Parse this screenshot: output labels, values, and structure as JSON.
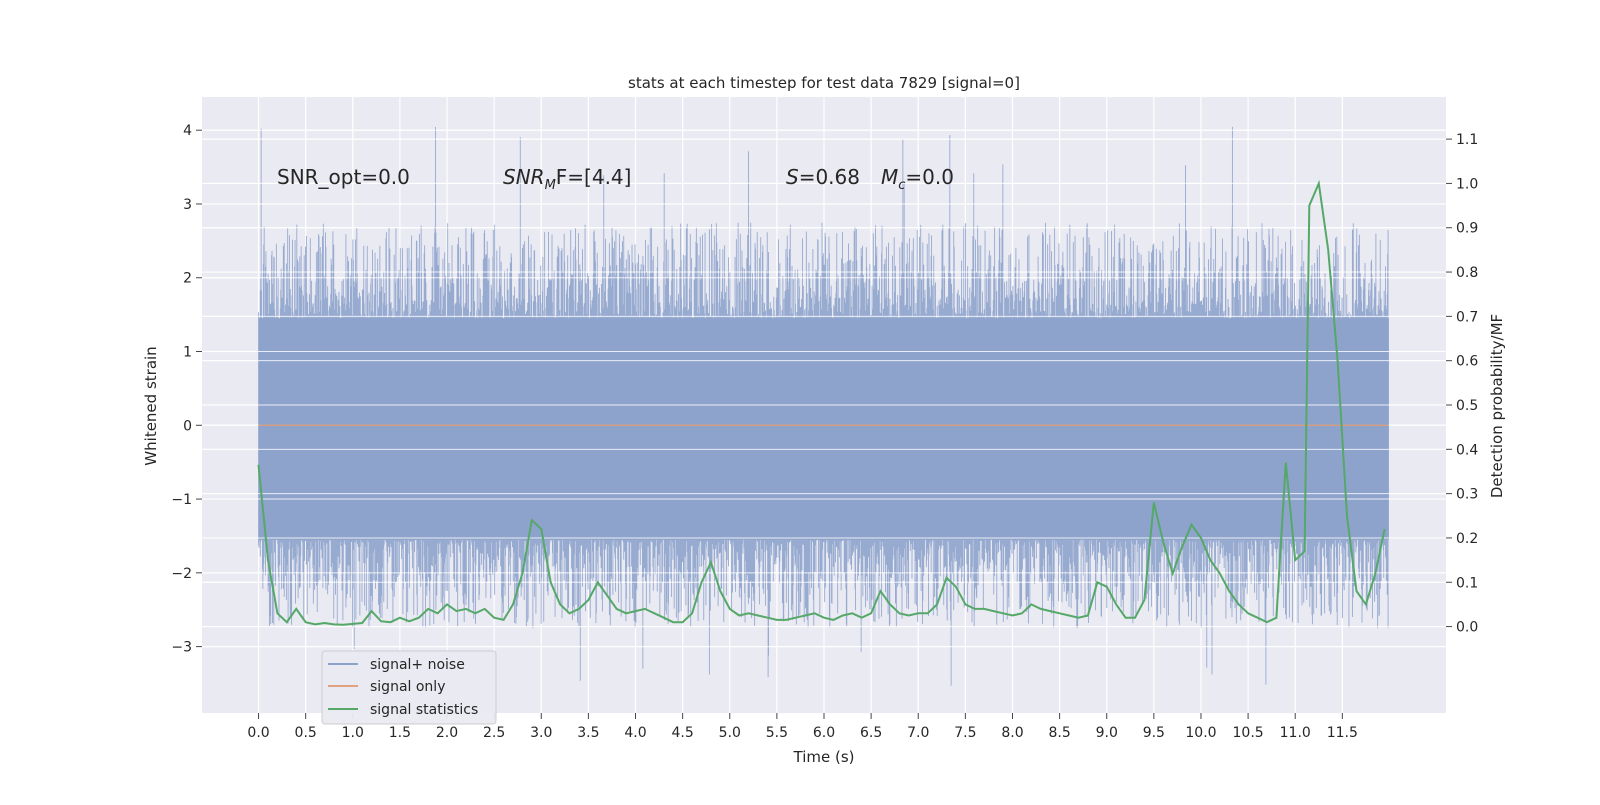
{
  "chart_data": {
    "type": "line",
    "title": "stats at each timestep for test data 7829 [signal=0]",
    "xlabel": "Time (s)",
    "ylabel_left": "Whitened strain",
    "ylabel_right": "Detection probability/MF",
    "xlim": [
      -0.6,
      12.6
    ],
    "ylim_left": [
      -3.9,
      4.45
    ],
    "ylim_right": [
      -0.195,
      1.195
    ],
    "x_ticks": [
      "0.0",
      "0.5",
      "1.0",
      "1.5",
      "2.0",
      "2.5",
      "3.0",
      "3.5",
      "4.0",
      "4.5",
      "5.0",
      "5.5",
      "6.0",
      "6.5",
      "7.0",
      "7.5",
      "8.0",
      "8.5",
      "9.0",
      "9.5",
      "10.0",
      "10.5",
      "11.0",
      "11.5"
    ],
    "y_ticks_left": [
      "−3",
      "−2",
      "−1",
      "0",
      "1",
      "2",
      "3",
      "4"
    ],
    "y_ticks_right": [
      "0.0",
      "0.1",
      "0.2",
      "0.3",
      "0.4",
      "0.5",
      "0.6",
      "0.7",
      "0.8",
      "0.9",
      "1.0",
      "1.1"
    ],
    "grid": true,
    "annotations": {
      "snr_opt": "SNR_opt=0.0",
      "snr_mf_main": "SNR",
      "snr_mf_sub": "M",
      "snr_mf_rest": "F=[4.4]",
      "s_main": "S",
      "s_rest": "=0.68",
      "mc_main": "M",
      "mc_sub": "c",
      "mc_rest": "=0.0"
    },
    "legend": {
      "placement": "lower-left",
      "entries": [
        "signal+ noise",
        "signal only",
        "signal statistics"
      ]
    },
    "colors": {
      "signal_noise": "#8ea3cc",
      "signal_only": "#dd8452",
      "signal_statistics": "#55a868",
      "background": "#eaeaf2",
      "grid": "#ffffff"
    },
    "signal_noise": {
      "t_start": 0.0,
      "t_end": 11.99,
      "typical_range": [
        -1.55,
        1.45
      ],
      "peak_max": 4.08,
      "peak_min": -3.55
    },
    "signal_only": {
      "x": [
        0.0,
        11.99
      ],
      "y": [
        0.0,
        0.0
      ]
    },
    "signal_statistics": {
      "x": [
        0.0,
        0.1,
        0.2,
        0.3,
        0.4,
        0.5,
        0.6,
        0.7,
        0.8,
        0.9,
        1.0,
        1.1,
        1.2,
        1.3,
        1.4,
        1.5,
        1.6,
        1.7,
        1.8,
        1.9,
        2.0,
        2.1,
        2.2,
        2.3,
        2.4,
        2.5,
        2.6,
        2.7,
        2.8,
        2.9,
        3.0,
        3.1,
        3.2,
        3.3,
        3.4,
        3.5,
        3.6,
        3.7,
        3.8,
        3.9,
        4.0,
        4.1,
        4.2,
        4.3,
        4.4,
        4.5,
        4.6,
        4.7,
        4.8,
        4.9,
        5.0,
        5.1,
        5.2,
        5.3,
        5.4,
        5.5,
        5.6,
        5.7,
        5.8,
        5.9,
        6.0,
        6.1,
        6.2,
        6.3,
        6.4,
        6.5,
        6.6,
        6.7,
        6.8,
        6.9,
        7.0,
        7.1,
        7.2,
        7.3,
        7.4,
        7.5,
        7.6,
        7.7,
        7.8,
        7.9,
        8.0,
        8.1,
        8.2,
        8.3,
        8.4,
        8.5,
        8.6,
        8.7,
        8.8,
        8.9,
        9.0,
        9.1,
        9.2,
        9.3,
        9.4,
        9.5,
        9.6,
        9.7,
        9.8,
        9.9,
        10.0,
        10.1,
        10.2,
        10.3,
        10.4,
        10.5,
        10.6,
        10.7,
        10.8,
        10.9,
        11.0,
        11.1,
        11.15,
        11.25,
        11.35,
        11.45,
        11.55,
        11.65,
        11.75,
        11.85,
        11.95
      ],
      "y": [
        0.365,
        0.15,
        0.03,
        0.01,
        0.04,
        0.01,
        0.005,
        0.008,
        0.005,
        0.004,
        0.006,
        0.008,
        0.035,
        0.012,
        0.01,
        0.02,
        0.012,
        0.02,
        0.04,
        0.03,
        0.05,
        0.035,
        0.04,
        0.03,
        0.04,
        0.02,
        0.015,
        0.05,
        0.12,
        0.24,
        0.22,
        0.1,
        0.05,
        0.03,
        0.04,
        0.06,
        0.1,
        0.07,
        0.04,
        0.03,
        0.035,
        0.04,
        0.03,
        0.02,
        0.01,
        0.01,
        0.03,
        0.1,
        0.145,
        0.08,
        0.04,
        0.025,
        0.03,
        0.025,
        0.02,
        0.015,
        0.015,
        0.02,
        0.025,
        0.03,
        0.02,
        0.015,
        0.025,
        0.03,
        0.02,
        0.03,
        0.08,
        0.05,
        0.03,
        0.025,
        0.03,
        0.03,
        0.05,
        0.11,
        0.09,
        0.05,
        0.04,
        0.04,
        0.035,
        0.03,
        0.025,
        0.03,
        0.05,
        0.04,
        0.035,
        0.03,
        0.025,
        0.02,
        0.025,
        0.1,
        0.09,
        0.05,
        0.02,
        0.02,
        0.06,
        0.28,
        0.19,
        0.12,
        0.18,
        0.23,
        0.2,
        0.15,
        0.12,
        0.08,
        0.05,
        0.03,
        0.02,
        0.01,
        0.02,
        0.37,
        0.15,
        0.17,
        0.95,
        1.0,
        0.85,
        0.6,
        0.25,
        0.08,
        0.05,
        0.12,
        0.22
      ]
    }
  }
}
